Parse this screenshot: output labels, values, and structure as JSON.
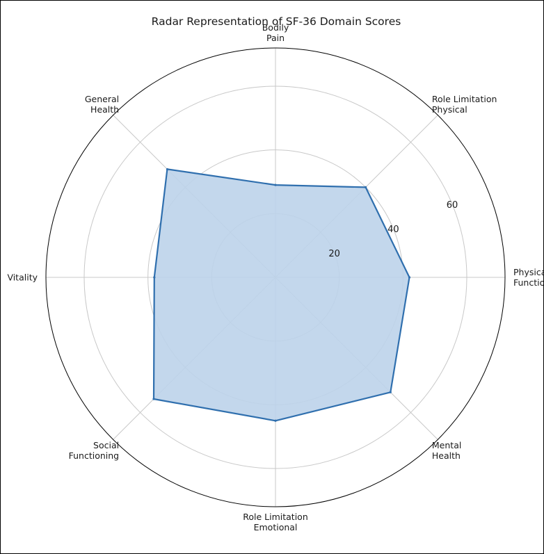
{
  "chart_data": {
    "type": "radar",
    "title": "Radar Representation of SF-36 Domain Scores",
    "categories": [
      [
        "Physical",
        "Functioning"
      ],
      [
        "Role Limitation",
        "Physical"
      ],
      [
        "Bodily",
        "Pain"
      ],
      [
        "General",
        "Health"
      ],
      [
        "Vitality"
      ],
      [
        "Social",
        "Functioning"
      ],
      [
        "Role Limitation",
        "Emotional"
      ],
      [
        "Mental",
        "Health"
      ]
    ],
    "series": [
      {
        "values": [
          42,
          40,
          29,
          48,
          38,
          54,
          45,
          51
        ]
      }
    ],
    "rlim": [
      0,
      72
    ],
    "rticks": [
      20,
      40,
      60
    ],
    "rtick_labels": [
      "20",
      "40",
      "60"
    ],
    "grid": true,
    "colors": {
      "line": "#2f6fae",
      "fill": "#bcd3ea",
      "grid": "#c8c8c8",
      "outer_ring": "#000000"
    }
  }
}
